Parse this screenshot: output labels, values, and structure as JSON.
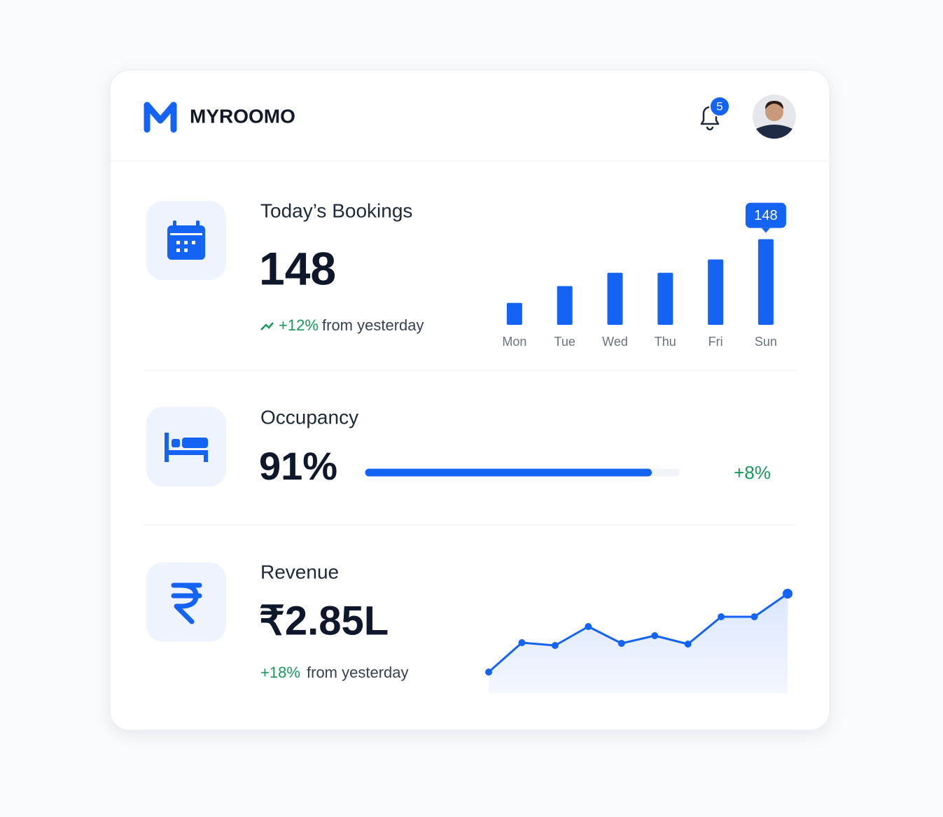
{
  "header": {
    "brand": "MYROOMO",
    "notifications": 5
  },
  "bookings": {
    "title": "Today’s Bookings",
    "value": 148,
    "change": "+12%",
    "change_text": "from yesterday",
    "chart": {
      "type": "bar",
      "categories": [
        "Mon",
        "Tue",
        "Wed",
        "Thu",
        "Fri",
        "Sun"
      ],
      "values": [
        38,
        67,
        90,
        90,
        113,
        148
      ],
      "color": "#1463f3",
      "ylim": [
        0,
        150
      ]
    }
  },
  "occupancy": {
    "title": "Occupancy",
    "value": 91,
    "value_label": "91%",
    "xlim": [
      0,
      100
    ],
    "change": "+8%"
  },
  "revenue": {
    "title": "Revenue",
    "value": "₹2.85L",
    "change": "+18%",
    "change_text": "from yesterday",
    "chart": {
      "type": "line",
      "categories": [
        null,
        null,
        null,
        null,
        null,
        null,
        null,
        null,
        null,
        null
      ],
      "values": [
        30,
        72,
        68,
        95,
        71,
        82,
        70,
        109,
        109,
        142
      ],
      "color": "#1463f3",
      "ylim": [
        0,
        150
      ]
    }
  }
}
